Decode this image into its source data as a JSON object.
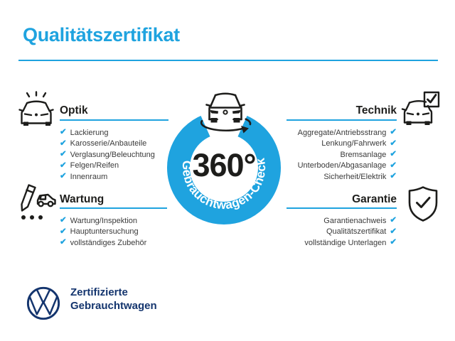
{
  "colors": {
    "accent": "#1fa3df",
    "ink": "#1d1d1b",
    "navy": "#14356e",
    "text": "#3a3a3a"
  },
  "header": {
    "title": "Qualitätszertifikat"
  },
  "badge": {
    "value": "360°",
    "ring_label": "Gebrauchtwagen-Check",
    "icon": "rotating-car-icon"
  },
  "check_glyph": "✔",
  "sections": [
    {
      "id": "optik",
      "title": "Optik",
      "icon": "shiny-car-icon",
      "align": "left",
      "items": [
        "Lackierung",
        "Karosserie/Anbauteile",
        "Verglasung/Beleuchtung",
        "Felgen/Reifen",
        "Innenraum"
      ]
    },
    {
      "id": "technik",
      "title": "Technik",
      "icon": "car-checkbox-icon",
      "align": "right",
      "items": [
        "Aggregate/Antriebsstrang",
        "Lenkung/Fahrwerk",
        "Bremsanlage",
        "Unterboden/Abgasanlage",
        "Sicherheit/Elektrik"
      ]
    },
    {
      "id": "wartung",
      "title": "Wartung",
      "icon": "pencil-car-icon",
      "align": "left",
      "items": [
        "Wartung/Inspektion",
        "Hauptuntersuchung",
        "vollständiges Zubehör"
      ]
    },
    {
      "id": "garantie",
      "title": "Garantie",
      "icon": "shield-check-icon",
      "align": "right",
      "items": [
        "Garantienachweis",
        "Qualitätszertifikat",
        "vollständige Unterlagen"
      ]
    }
  ],
  "footer": {
    "logo_icon": "vw-logo",
    "line1": "Zertifizierte",
    "line2": "Gebrauchtwagen"
  }
}
